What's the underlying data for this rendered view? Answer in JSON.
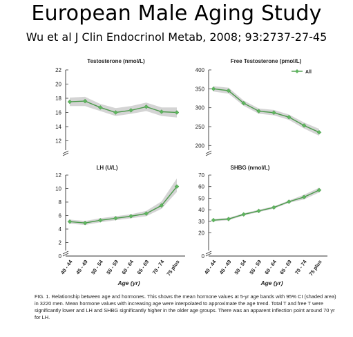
{
  "title": "European Male Aging Study",
  "subtitle": "Wu et al J Clin Endocrinol Metab, 2008; 93:2737-27-45",
  "caption": "FIG. 1. Relationship between age and hormones. This shows the mean hormone values at 5-yr age bands with 95% CI (shaded area) in 3220 men. Mean hormone values with increasing age were interpolated to approximate the age trend. Total T and free T were significantly lower and LH and SHBG significantly higher in the older age groups. There was an apparent inflection point around 70 yr for LH.",
  "colors": {
    "line": "#4a9a4a",
    "marker": "#5fb65f",
    "band": "#cfcfcf",
    "axis": "#333333"
  },
  "chart_data": [
    {
      "type": "line",
      "title": "Testosterone (nmol/L)",
      "categories": [
        "40 - 44",
        "45 - 49",
        "50 - 54",
        "55 - 59",
        "60 - 64",
        "65 - 69",
        "70 - 74",
        "75 plus"
      ],
      "xlabel": "",
      "ylabel": "",
      "ylim": [
        10,
        22
      ],
      "yticks": [
        12,
        14,
        16,
        18,
        20,
        22
      ],
      "axis_break": true,
      "series": [
        {
          "values": [
            17.5,
            17.6,
            16.7,
            16.0,
            16.3,
            16.8,
            16.1,
            16.0
          ]
        }
      ],
      "ci_lower": [
        16.9,
        16.9,
        16.2,
        15.5,
        15.8,
        16.2,
        15.5,
        15.3
      ],
      "ci_upper": [
        18.1,
        18.2,
        17.2,
        16.6,
        16.9,
        17.4,
        16.7,
        16.7
      ],
      "grid": false
    },
    {
      "type": "line",
      "title": "Free Testosterone (pmol/L)",
      "categories": [
        "40 - 44",
        "45 - 49",
        "50 - 54",
        "55 - 59",
        "60 - 64",
        "65 - 69",
        "70 - 74",
        "75 plus"
      ],
      "xlabel": "",
      "ylabel": "",
      "ylim": [
        175,
        400
      ],
      "yticks": [
        200,
        250,
        300,
        350,
        400
      ],
      "axis_break": true,
      "legend": [
        "All"
      ],
      "legend_position": "top-right",
      "series": [
        {
          "name": "All",
          "values": [
            350,
            345,
            312,
            291,
            287,
            275,
            253,
            235
          ]
        }
      ],
      "ci_lower": [
        343,
        337,
        305,
        284,
        280,
        268,
        245,
        226
      ],
      "ci_upper": [
        357,
        353,
        319,
        298,
        294,
        282,
        261,
        244
      ],
      "grid": false
    },
    {
      "type": "line",
      "title": "LH (U/L)",
      "categories": [
        "40 - 44",
        "45 - 49",
        "50 - 54",
        "55 - 59",
        "60 - 64",
        "65 - 69",
        "70 - 74",
        "75 plus"
      ],
      "xlabel": "Age (yr)",
      "ylabel": "",
      "ylim": [
        0,
        12
      ],
      "yticks": [
        0,
        2,
        4,
        6,
        8,
        10,
        12
      ],
      "axis_break": true,
      "series": [
        {
          "values": [
            5.1,
            4.9,
            5.3,
            5.6,
            5.9,
            6.3,
            7.5,
            10.3
          ]
        }
      ],
      "ci_lower": [
        4.8,
        4.6,
        5.0,
        5.3,
        5.6,
        5.9,
        7.0,
        9.5
      ],
      "ci_upper": [
        5.4,
        5.2,
        5.6,
        5.9,
        6.2,
        6.7,
        8.1,
        11.5
      ],
      "grid": false
    },
    {
      "type": "line",
      "title": "SHBG (nmol/L)",
      "categories": [
        "40 - 44",
        "45 - 49",
        "50 - 54",
        "55 - 59",
        "60 - 64",
        "65 - 69",
        "70 - 74",
        "75 plus"
      ],
      "xlabel": "Age (yr)",
      "ylabel": "",
      "ylim": [
        0,
        70
      ],
      "yticks": [
        0,
        20,
        30,
        40,
        50,
        60,
        70
      ],
      "axis_break": true,
      "series": [
        {
          "values": [
            31,
            32,
            36,
            39,
            42,
            47,
            51,
            57
          ]
        }
      ],
      "ci_lower": [
        30,
        31,
        35,
        38,
        41,
        46,
        49,
        55
      ],
      "ci_upper": [
        32,
        33,
        37,
        40,
        43,
        48,
        53,
        59
      ],
      "grid": false
    }
  ]
}
